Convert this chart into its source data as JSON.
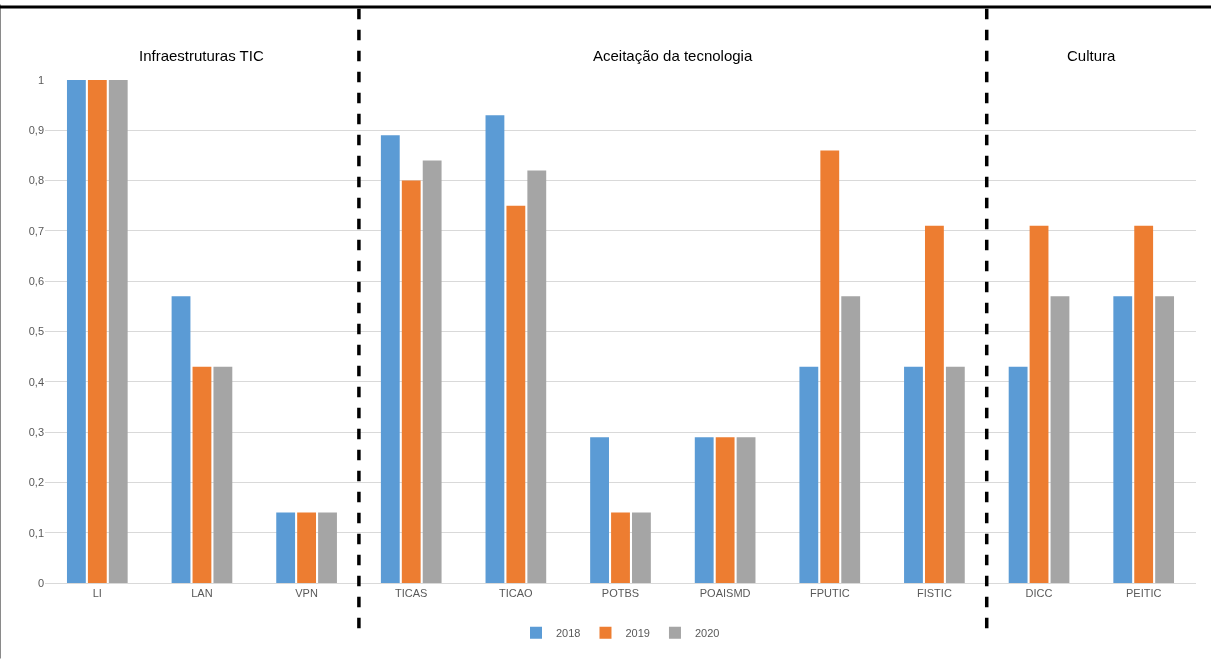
{
  "chart_data": {
    "type": "bar",
    "categories": [
      "LI",
      "LAN",
      "VPN",
      "TICAS",
      "TICAO",
      "POTBS",
      "POAISMD",
      "FPUTIC",
      "FISTIC",
      "DICC",
      "PEITIC"
    ],
    "series": [
      {
        "name": "2018",
        "color": "#5b9bd5",
        "values": [
          1,
          0.57,
          0.14,
          0.89,
          0.93,
          0.29,
          0.29,
          0.43,
          0.43,
          0.43,
          0.57
        ]
      },
      {
        "name": "2019",
        "color": "#ed7d31",
        "values": [
          1,
          0.43,
          0.14,
          0.8,
          0.75,
          0.14,
          0.29,
          0.86,
          0.71,
          0.71,
          0.71
        ]
      },
      {
        "name": "2020",
        "color": "#a5a5a5",
        "values": [
          1,
          0.43,
          0.14,
          0.84,
          0.82,
          0.14,
          0.29,
          0.57,
          0.43,
          0.57,
          0.57
        ]
      }
    ],
    "ylim": [
      0,
      1
    ],
    "yticks": [
      0,
      {
        "value": 0.1,
        "label": "0,1"
      },
      {
        "value": 0.2,
        "label": "0,2"
      },
      {
        "value": 0.3,
        "label": "0,3"
      },
      {
        "value": 0.4,
        "label": "0,4"
      },
      {
        "value": 0.5,
        "label": "0,5"
      },
      {
        "value": 0.6,
        "label": "0,6"
      },
      {
        "value": 0.7,
        "label": "0,7"
      },
      {
        "value": 0.8,
        "label": "0,8"
      },
      {
        "value": 0.9,
        "label": "0,9"
      },
      1
    ],
    "annotations": [
      "Infraestruturas TIC",
      "Aceitação da tecnologia",
      "Cultura"
    ],
    "grid": "y",
    "legend": "bottom"
  }
}
